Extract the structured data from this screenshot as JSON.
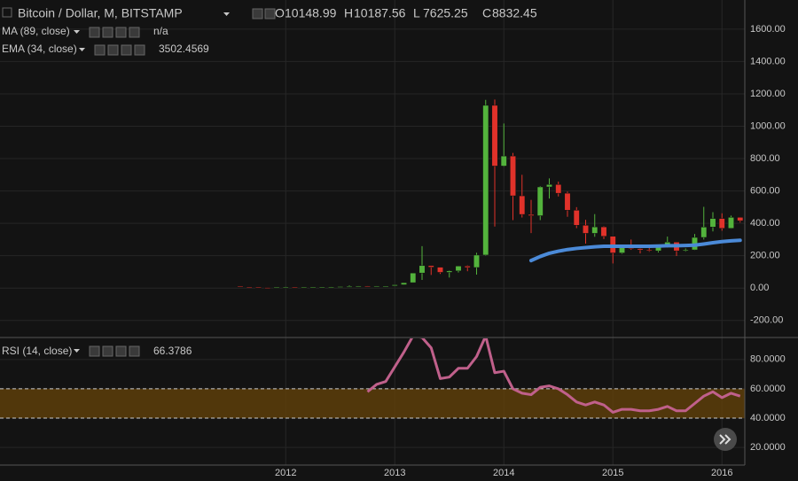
{
  "chart_data": [
    {
      "type": "candlestick",
      "title": "Bitcoin / Dollar, M, BITSTAMP",
      "ohlc_header": [
        {
          "label": "O",
          "value": 10148.99
        },
        {
          "label": "H",
          "value": 10187.56
        },
        {
          "label": "L",
          "value": 7625.25
        },
        {
          "label": "C",
          "value": 8832.45
        }
      ],
      "categories": [
        null,
        null,
        null,
        null,
        null,
        "2012",
        null,
        null,
        null,
        null,
        null,
        null,
        null,
        null,
        null,
        null,
        null,
        "2013",
        null,
        null,
        null,
        null,
        null,
        null,
        null,
        null,
        null,
        null,
        null,
        "2014",
        null,
        null,
        null,
        null,
        null,
        null,
        null,
        null,
        null,
        null,
        null,
        "2015",
        null,
        null,
        null,
        null,
        null,
        null,
        null,
        null,
        null,
        null,
        null,
        "2016",
        null,
        null
      ],
      "open": [
        13,
        8,
        5,
        3.2,
        3,
        4.7,
        5.5,
        4.9,
        4.9,
        5,
        5.2,
        6.7,
        9.3,
        10,
        12.4,
        11.2,
        12.6,
        13.5,
        20.4,
        33.4,
        93,
        139,
        129,
        97,
        106,
        136,
        127,
        204,
        1129,
        754,
        816,
        570,
        455,
        447,
        625,
        640,
        586,
        481,
        388,
        338,
        378,
        320,
        217,
        254,
        244,
        236,
        230,
        263,
        284,
        230,
        236,
        313,
        377,
        430,
        369,
        437
      ],
      "high": [
        13,
        8.5,
        5,
        3.5,
        4.8,
        7.4,
        6.3,
        5.4,
        5.3,
        5.3,
        7,
        9.5,
        16,
        12.9,
        13,
        12.6,
        14,
        21,
        33.4,
        93,
        259,
        139,
        129,
        110,
        138,
        140,
        218,
        1163,
        1165,
        1017,
        835,
        700,
        545,
        630,
        678,
        658,
        596,
        500,
        422,
        457,
        382,
        320,
        265,
        300,
        262,
        248,
        267,
        318,
        285,
        245,
        334,
        502,
        469,
        462,
        448,
        439
      ],
      "low": [
        7,
        4.5,
        2,
        2,
        2.8,
        4.6,
        4.2,
        4.6,
        4.7,
        4.9,
        5.2,
        6.6,
        7.1,
        9.8,
        10.3,
        10,
        12.6,
        13.2,
        19.6,
        33,
        50,
        81,
        87,
        65,
        96,
        104,
        83,
        200,
        380,
        750,
        420,
        436,
        340,
        420,
        553,
        566,
        440,
        370,
        275,
        317,
        303,
        152,
        212,
        236,
        214,
        224,
        220,
        250,
        198,
        225,
        234,
        300,
        350,
        354,
        367,
        405
      ],
      "close": [
        8,
        5,
        3.2,
        3,
        4.7,
        5.5,
        4.9,
        4.9,
        5,
        5.2,
        6.7,
        9.3,
        10,
        12.4,
        11.2,
        12.6,
        13.5,
        20.4,
        33.4,
        93,
        139,
        129,
        97,
        106,
        136,
        127,
        204,
        1129,
        754,
        816,
        570,
        455,
        447,
        625,
        640,
        586,
        481,
        388,
        338,
        378,
        320,
        217,
        254,
        244,
        236,
        230,
        263,
        284,
        230,
        236,
        313,
        377,
        430,
        369,
        437,
        416
      ],
      "colors": {
        "up": "#53b33c",
        "down": "#e0322a"
      },
      "indicators": [
        {
          "name": "MA (89, close)",
          "last": "n/a",
          "color": "#5fa83b"
        },
        {
          "name": "EMA (34, close)",
          "last": 3502.4569,
          "color": "#4b8ad8",
          "values": [
            null,
            null,
            null,
            null,
            null,
            null,
            null,
            null,
            null,
            null,
            null,
            null,
            null,
            null,
            null,
            null,
            null,
            null,
            null,
            null,
            null,
            null,
            null,
            null,
            null,
            null,
            null,
            null,
            null,
            null,
            null,
            null,
            170,
            195,
            215,
            228,
            238,
            245,
            250,
            255,
            258,
            258,
            258,
            258,
            258,
            258,
            260,
            262,
            262,
            263,
            265,
            272,
            280,
            287,
            292,
            295
          ]
        }
      ],
      "ylim": [
        -300,
        1780
      ],
      "yticks": [
        {
          "value": -200,
          "label": "-200.00"
        },
        {
          "value": 0,
          "label": "0.00"
        },
        {
          "value": 200,
          "label": "200.00"
        },
        {
          "value": 400,
          "label": "400.00"
        },
        {
          "value": 600,
          "label": "600.00"
        },
        {
          "value": 800,
          "label": "800.00"
        },
        {
          "value": 1000,
          "label": "1000.00"
        },
        {
          "value": 1200,
          "label": "1200.00"
        },
        {
          "value": 1400,
          "label": "1400.00"
        },
        {
          "value": 1600,
          "label": "1600.00"
        }
      ]
    },
    {
      "type": "line",
      "title": "RSI (14, close)",
      "last": 66.3786,
      "color": "#c0608b",
      "values": [
        null,
        null,
        null,
        null,
        null,
        null,
        null,
        null,
        null,
        null,
        null,
        null,
        null,
        null,
        58,
        63,
        65,
        75,
        85,
        96,
        95,
        88,
        67,
        68,
        74,
        74,
        82,
        96,
        71,
        72,
        60,
        57,
        56,
        61,
        62,
        60,
        56,
        51,
        49,
        51,
        49,
        44,
        46,
        46,
        45,
        45,
        46,
        48,
        45,
        45,
        50,
        55,
        58,
        54,
        57,
        55
      ],
      "band": [
        40,
        60
      ],
      "band_color": "#5d3e0b",
      "ylim": [
        8,
        95
      ],
      "yticks": [
        {
          "value": 20,
          "label": "20.0000"
        },
        {
          "value": 40,
          "label": "40.0000"
        },
        {
          "value": 60,
          "label": "60.0000"
        },
        {
          "value": 80,
          "label": "80.0000"
        }
      ]
    }
  ]
}
